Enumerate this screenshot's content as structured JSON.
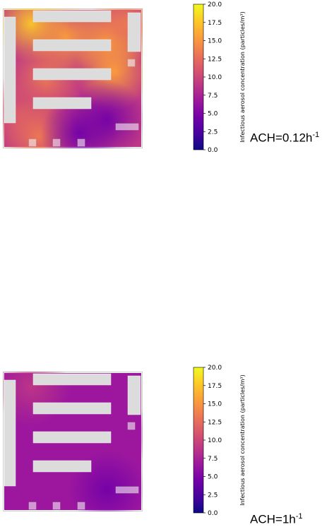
{
  "chart_data": [
    {
      "type": "heatmap",
      "annotation": {
        "prefix": "ACH=0.12h",
        "exponent": "-1"
      },
      "colorbar": {
        "label": "Infectious aerosol concentration (particles/m³)",
        "range": [
          0,
          20
        ],
        "ticks": [
          "0.0",
          "2.5",
          "5.0",
          "7.5",
          "10.0",
          "12.5",
          "15.0",
          "17.5",
          "20.0"
        ],
        "colormap": "plasma"
      },
      "background_value": 8,
      "hotspots": [
        {
          "x": 0.2,
          "y": 0.1,
          "v": 17
        },
        {
          "x": 0.45,
          "y": 0.2,
          "v": 16
        },
        {
          "x": 0.75,
          "y": 0.22,
          "v": 15
        },
        {
          "x": 0.9,
          "y": 0.1,
          "v": 14
        },
        {
          "x": 0.3,
          "y": 0.5,
          "v": 14
        },
        {
          "x": 0.8,
          "y": 0.45,
          "v": 15
        },
        {
          "x": 0.1,
          "y": 0.75,
          "v": 12
        },
        {
          "x": 0.25,
          "y": 0.92,
          "v": 14
        },
        {
          "x": 0.75,
          "y": 0.8,
          "v": 4
        },
        {
          "x": 0.55,
          "y": 0.9,
          "v": 5
        }
      ]
    },
    {
      "type": "heatmap",
      "annotation": {
        "prefix": "ACH=1h",
        "exponent": "-1"
      },
      "colorbar": {
        "label": "Infectious aerosol concentration (particles/m³)",
        "range": [
          0,
          20
        ],
        "ticks": [
          "0.0",
          "2.5",
          "5.0",
          "7.5",
          "10.0",
          "12.5",
          "15.0",
          "17.5",
          "20.0"
        ],
        "colormap": "plasma"
      },
      "background_value": 6,
      "hotspots": [
        {
          "x": 0.2,
          "y": 0.1,
          "v": 8
        },
        {
          "x": 0.8,
          "y": 0.45,
          "v": 7.5
        },
        {
          "x": 0.75,
          "y": 0.85,
          "v": 4.5
        }
      ]
    }
  ]
}
